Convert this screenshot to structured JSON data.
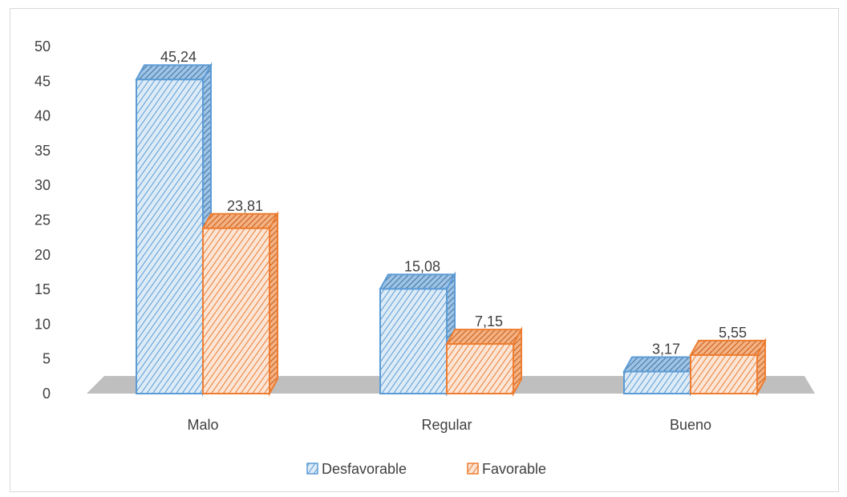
{
  "chart_data": {
    "type": "bar",
    "categories": [
      "Malo",
      "Regular",
      "Bueno"
    ],
    "series": [
      {
        "name": "Desfavorable",
        "values": [
          45.24,
          15.08,
          3.17
        ],
        "labels": [
          "45,24",
          "15,08",
          "3,17"
        ],
        "color": "#5b9bd5",
        "fill": "#ddebf7"
      },
      {
        "name": "Favorable",
        "values": [
          23.81,
          7.15,
          5.55
        ],
        "labels": [
          "23,81",
          "7,15",
          "5,55"
        ],
        "color": "#ed7d31",
        "fill": "#fbe5d6"
      }
    ],
    "ylim": [
      0,
      50
    ],
    "yticks": [
      "0",
      "5",
      "10",
      "15",
      "20",
      "25",
      "30",
      "35",
      "40",
      "45",
      "50"
    ],
    "legend_position": "bottom",
    "grid": false,
    "style": "3d-hatched"
  }
}
